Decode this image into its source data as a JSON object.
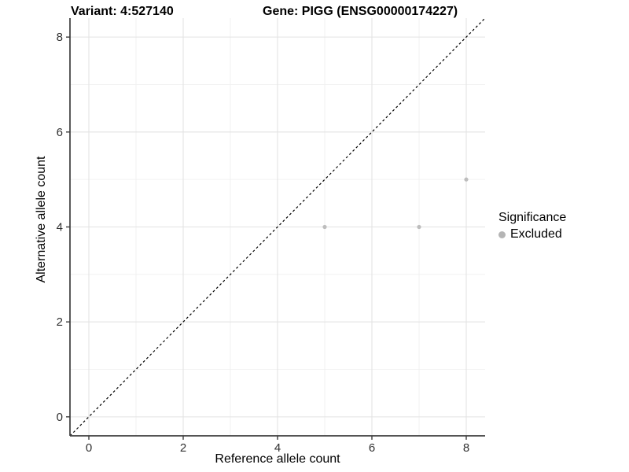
{
  "figure": {
    "title_variant": "Variant: 4:527140",
    "title_gene": "Gene: PIGG (ENSG00000174227)"
  },
  "chart_data": {
    "type": "scatter",
    "title": "Variant: 4:527140   Gene: PIGG (ENSG00000174227)",
    "xlabel": "Reference allele count",
    "ylabel": "Alternative allele count",
    "xlim": [
      -0.4,
      8.4
    ],
    "ylim": [
      -0.4,
      8.4
    ],
    "x_ticks": [
      0,
      2,
      4,
      6,
      8
    ],
    "y_ticks": [
      0,
      2,
      4,
      6,
      8
    ],
    "x_minor_gridlines": [
      1,
      3,
      5,
      7
    ],
    "y_minor_gridlines": [
      1,
      3,
      5,
      7
    ],
    "grid": true,
    "series": [
      {
        "name": "Excluded",
        "points": [
          {
            "x": 5,
            "y": 4
          },
          {
            "x": 7,
            "y": 4
          },
          {
            "x": 8,
            "y": 5
          }
        ]
      }
    ],
    "reference_line": {
      "kind": "identity y=x",
      "style": "dashed",
      "color": "#000000"
    },
    "legend": {
      "title": "Significance",
      "position": "right",
      "items": [
        {
          "label": "Excluded",
          "color": "#B5B5B5"
        }
      ]
    },
    "colors": {
      "point": "#BDBDBD",
      "grid_major": "#E3E3E3",
      "grid_minor": "#F0F0F0",
      "axis_line": "#3d3d3d",
      "tick_text": "#303030"
    }
  }
}
